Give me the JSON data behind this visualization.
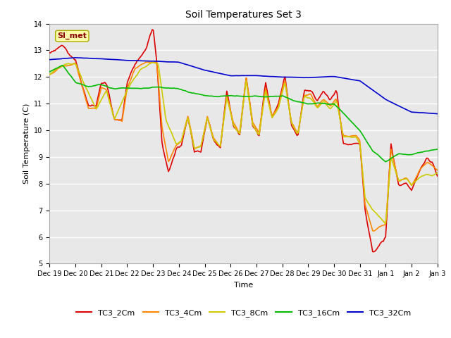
{
  "title": "Soil Temperatures Set 3",
  "xlabel": "Time",
  "ylabel": "Soil Temperature (C)",
  "ylim": [
    5.0,
    14.0
  ],
  "yticks": [
    5.0,
    6.0,
    7.0,
    8.0,
    9.0,
    10.0,
    11.0,
    12.0,
    13.0,
    14.0
  ],
  "bg_color": "#ffffff",
  "plot_bg_color": "#e8e8e8",
  "grid_color": "#ffffff",
  "annotation_text": "SI_met",
  "annotation_color": "#8b0000",
  "annotation_bg": "#ffffaa",
  "annotation_edge": "#aaaa00",
  "series": {
    "TC3_2Cm": {
      "color": "#dd0000",
      "lw": 1.2
    },
    "TC3_4Cm": {
      "color": "#ff8800",
      "lw": 1.2
    },
    "TC3_8Cm": {
      "color": "#cccc00",
      "lw": 1.2
    },
    "TC3_16Cm": {
      "color": "#00bb00",
      "lw": 1.2
    },
    "TC3_32Cm": {
      "color": "#0000cc",
      "lw": 1.2
    }
  },
  "x_labels": [
    "Dec 19",
    "Dec 20",
    "Dec 21",
    "Dec 22",
    "Dec 23",
    "Dec 24",
    "Dec 25",
    "Dec 26",
    "Dec 27",
    "Dec 28",
    "Dec 29",
    "Dec 30",
    "Dec 31",
    "Jan 1",
    "Jan 2",
    "Jan 3"
  ],
  "title_fontsize": 10,
  "axis_label_fontsize": 8,
  "tick_fontsize": 7,
  "legend_fontsize": 8
}
